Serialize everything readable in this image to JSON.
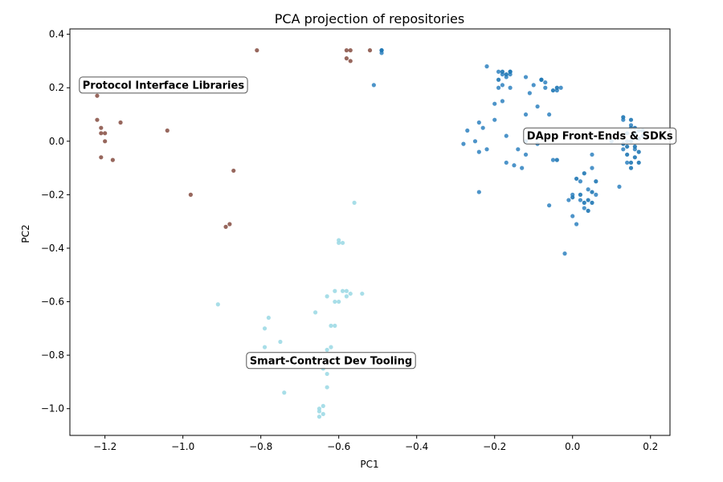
{
  "chart_data": {
    "type": "scatter",
    "title": "PCA projection of repositories",
    "xlabel": "PC1",
    "ylabel": "PC2",
    "xlim": [
      -1.29,
      0.25
    ],
    "ylim": [
      -1.1,
      0.42
    ],
    "xticks": [
      -1.2,
      -1.0,
      -0.8,
      -0.6,
      -0.4,
      -0.2,
      0.0,
      0.2
    ],
    "yticks": [
      -1.0,
      -0.8,
      -0.6,
      -0.4,
      -0.2,
      0.0,
      0.2,
      0.4
    ],
    "xtick_labels": [
      "−1.2",
      "−1.0",
      "−0.8",
      "−0.6",
      "−0.4",
      "−0.2",
      "0.0",
      "0.2"
    ],
    "ytick_labels": [
      "−1.0",
      "−0.8",
      "−0.6",
      "−0.4",
      "−0.2",
      "0.0",
      "0.2",
      "0.4"
    ],
    "grid": false,
    "legend": "none",
    "annotations": [
      {
        "text": "Protocol Interface Libraries",
        "x": -1.05,
        "y": 0.21
      },
      {
        "text": "DApp Front-Ends & SDKs",
        "x": 0.07,
        "y": 0.02
      },
      {
        "text": "Smart-Contract Dev Tooling",
        "x": -0.62,
        "y": -0.82
      }
    ],
    "series": [
      {
        "color": "#8c564b",
        "points": [
          [
            -1.22,
            0.17
          ],
          [
            -1.22,
            0.08
          ],
          [
            -1.21,
            0.05
          ],
          [
            -1.21,
            0.03
          ],
          [
            -1.2,
            0.03
          ],
          [
            -1.2,
            0.0
          ],
          [
            -1.21,
            -0.06
          ],
          [
            -1.18,
            -0.07
          ],
          [
            -1.16,
            0.07
          ],
          [
            -1.04,
            0.04
          ],
          [
            -0.98,
            -0.2
          ],
          [
            -0.89,
            -0.32
          ],
          [
            -0.88,
            -0.31
          ],
          [
            -0.87,
            -0.11
          ],
          [
            -0.81,
            0.34
          ],
          [
            -0.58,
            0.34
          ],
          [
            -0.57,
            0.34
          ],
          [
            -0.58,
            0.31
          ],
          [
            -0.57,
            0.3
          ],
          [
            -0.52,
            0.34
          ]
        ]
      },
      {
        "color": "#9edae5",
        "points": [
          [
            -0.91,
            -0.61
          ],
          [
            -0.79,
            -0.7
          ],
          [
            -0.78,
            -0.66
          ],
          [
            -0.79,
            -0.77
          ],
          [
            -0.75,
            -0.75
          ],
          [
            -0.74,
            -0.94
          ],
          [
            -0.66,
            -0.64
          ],
          [
            -0.65,
            -1.0
          ],
          [
            -0.65,
            -1.01
          ],
          [
            -0.64,
            -1.02
          ],
          [
            -0.65,
            -1.03
          ],
          [
            -0.64,
            -0.99
          ],
          [
            -0.63,
            -0.92
          ],
          [
            -0.64,
            -0.85
          ],
          [
            -0.63,
            -0.87
          ],
          [
            -0.63,
            -0.78
          ],
          [
            -0.62,
            -0.77
          ],
          [
            -0.62,
            -0.69
          ],
          [
            -0.61,
            -0.69
          ],
          [
            -0.63,
            -0.58
          ],
          [
            -0.61,
            -0.56
          ],
          [
            -0.6,
            -0.6
          ],
          [
            -0.6,
            -0.38
          ],
          [
            -0.6,
            -0.37
          ],
          [
            -0.59,
            -0.38
          ],
          [
            -0.58,
            -0.58
          ],
          [
            -0.57,
            -0.57
          ],
          [
            -0.58,
            -0.56
          ],
          [
            -0.56,
            -0.23
          ],
          [
            -0.54,
            -0.57
          ],
          [
            -0.61,
            -0.6
          ],
          [
            -0.59,
            -0.56
          ]
        ]
      },
      {
        "color": "#3a88c3",
        "points": [
          [
            -0.51,
            0.21
          ],
          [
            -0.49,
            0.34
          ],
          [
            -0.49,
            0.33
          ],
          [
            -0.28,
            -0.01
          ],
          [
            -0.27,
            0.04
          ],
          [
            -0.25,
            0.0
          ],
          [
            -0.24,
            -0.04
          ],
          [
            -0.24,
            -0.19
          ],
          [
            -0.24,
            0.07
          ],
          [
            -0.23,
            0.05
          ],
          [
            -0.22,
            -0.03
          ],
          [
            -0.22,
            0.28
          ],
          [
            -0.2,
            0.08
          ],
          [
            -0.2,
            0.14
          ],
          [
            -0.19,
            0.2
          ],
          [
            -0.19,
            0.26
          ],
          [
            -0.18,
            0.25
          ],
          [
            -0.18,
            0.21
          ],
          [
            -0.17,
            0.24
          ],
          [
            -0.18,
            0.15
          ],
          [
            -0.17,
            -0.08
          ],
          [
            -0.16,
            0.26
          ],
          [
            -0.16,
            0.25
          ],
          [
            -0.17,
            0.02
          ],
          [
            -0.16,
            0.2
          ],
          [
            -0.15,
            -0.09
          ],
          [
            -0.14,
            -0.03
          ],
          [
            -0.13,
            -0.1
          ],
          [
            -0.12,
            0.1
          ],
          [
            -0.12,
            -0.05
          ],
          [
            -0.12,
            0.24
          ],
          [
            -0.11,
            0.18
          ],
          [
            -0.1,
            0.21
          ],
          [
            -0.09,
            0.13
          ],
          [
            -0.09,
            -0.01
          ],
          [
            -0.08,
            0.23
          ],
          [
            -0.07,
            0.2
          ],
          [
            -0.07,
            0.22
          ],
          [
            -0.06,
            0.1
          ],
          [
            -0.06,
            -0.24
          ],
          [
            -0.05,
            -0.07
          ],
          [
            -0.04,
            0.19
          ],
          [
            -0.03,
            0.2
          ],
          [
            -0.02,
            -0.42
          ],
          [
            -0.01,
            -0.22
          ],
          [
            0.0,
            -0.28
          ],
          [
            0.0,
            -0.2
          ],
          [
            0.01,
            -0.31
          ],
          [
            0.02,
            -0.15
          ],
          [
            0.02,
            -0.22
          ],
          [
            0.03,
            -0.25
          ],
          [
            0.04,
            -0.18
          ],
          [
            0.05,
            -0.1
          ],
          [
            0.05,
            -0.05
          ],
          [
            0.06,
            -0.2
          ],
          [
            0.12,
            -0.17
          ],
          [
            0.13,
            -0.03
          ],
          [
            0.13,
            0.08
          ],
          [
            0.14,
            0.0
          ],
          [
            0.14,
            -0.08
          ],
          [
            0.15,
            0.06
          ],
          [
            0.16,
            -0.03
          ],
          [
            0.17,
            0.04
          ],
          [
            0.18,
            0.02
          ],
          [
            0.1,
            0.0
          ]
        ]
      },
      {
        "color": "#1f77b4",
        "points": [
          [
            -0.49,
            0.34
          ],
          [
            -0.18,
            0.26
          ],
          [
            -0.16,
            0.26
          ],
          [
            -0.19,
            0.23
          ],
          [
            -0.17,
            0.25
          ],
          [
            -0.12,
            0.0
          ],
          [
            -0.08,
            0.23
          ],
          [
            -0.05,
            0.19
          ],
          [
            -0.04,
            0.2
          ],
          [
            -0.04,
            -0.07
          ],
          [
            0.0,
            -0.21
          ],
          [
            0.01,
            -0.14
          ],
          [
            0.02,
            -0.2
          ],
          [
            0.03,
            -0.23
          ],
          [
            0.04,
            -0.22
          ],
          [
            0.04,
            -0.26
          ],
          [
            0.05,
            -0.23
          ],
          [
            0.05,
            -0.19
          ],
          [
            0.06,
            -0.15
          ],
          [
            0.03,
            -0.12
          ],
          [
            0.13,
            0.09
          ],
          [
            0.15,
            0.08
          ],
          [
            0.15,
            0.0
          ],
          [
            0.16,
            -0.02
          ],
          [
            0.16,
            -0.06
          ],
          [
            0.17,
            -0.04
          ],
          [
            0.14,
            -0.05
          ],
          [
            0.15,
            -0.08
          ],
          [
            0.16,
            0.05
          ],
          [
            0.17,
            0.01
          ],
          [
            0.15,
            -0.1
          ],
          [
            0.14,
            0.03
          ],
          [
            0.18,
            0.04
          ],
          [
            0.16,
            0.03
          ],
          [
            0.13,
            -0.01
          ],
          [
            0.17,
            -0.08
          ],
          [
            0.15,
            0.05
          ],
          [
            0.14,
            -0.02
          ]
        ]
      }
    ]
  }
}
